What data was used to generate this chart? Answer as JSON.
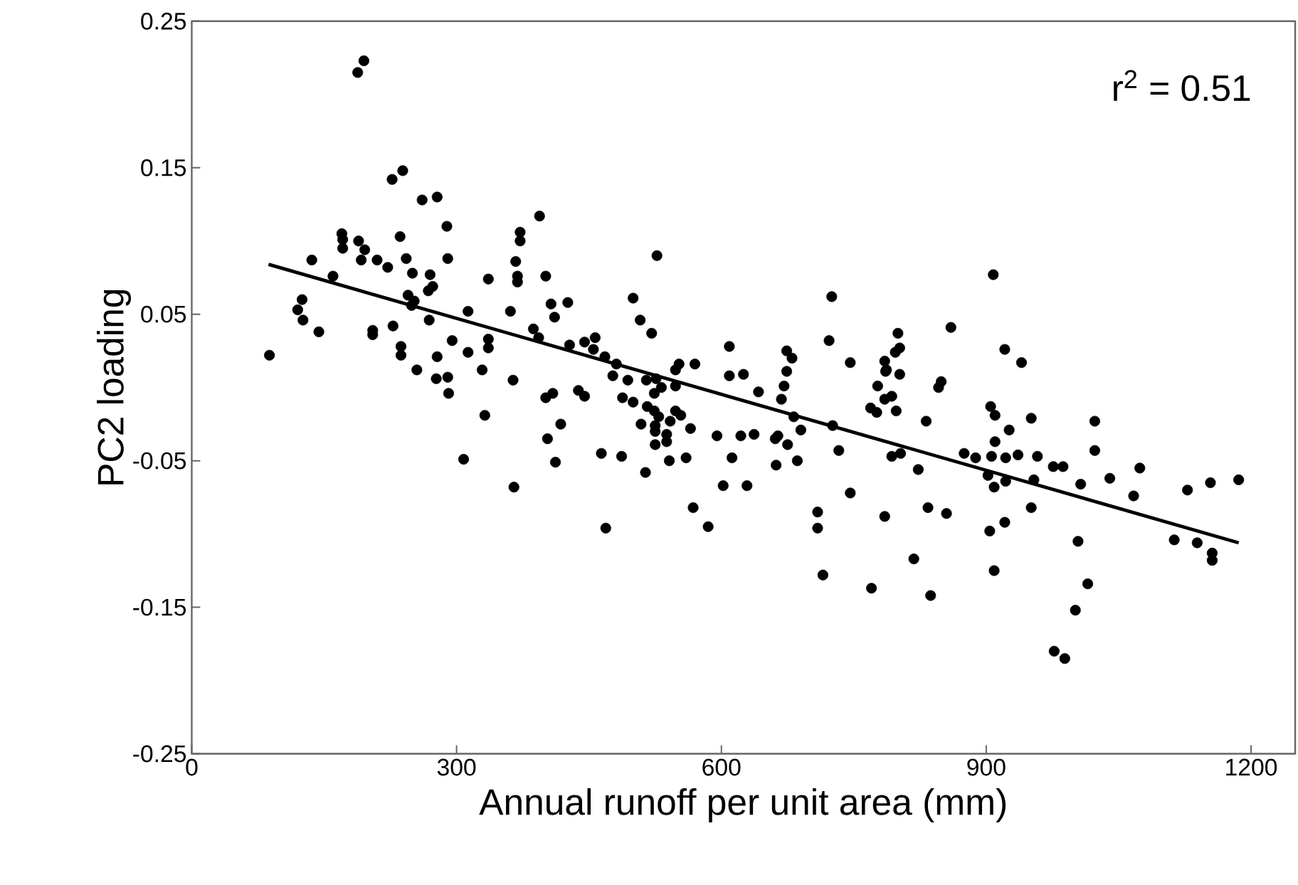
{
  "chart_data": {
    "type": "scatter",
    "xlabel": "Annual runoff per unit area (mm)",
    "ylabel": "PC2 loading",
    "annotations": [
      "r$^{2}$ = 0.51"
    ],
    "xlim": [
      0,
      1250
    ],
    "xticks": [
      0,
      300,
      600,
      900,
      1200
    ],
    "ylim": [
      -0.25,
      0.25
    ],
    "yticks": [
      -0.25,
      -0.15,
      -0.05,
      0.05,
      0.15,
      0.25
    ],
    "grid": false,
    "series": [
      {
        "color": "#000000",
        "marker": "circle",
        "x": [
          88,
          188,
          195,
          227,
          239,
          261,
          278,
          289,
          394,
          372,
          372,
          170,
          171,
          171,
          189,
          196,
          192,
          136,
          210,
          222,
          236,
          243,
          250,
          290,
          160,
          270,
          273,
          268,
          245,
          252,
          249,
          125,
          120,
          126,
          144,
          205,
          205,
          228,
          269,
          237,
          237,
          255,
          278,
          277,
          290,
          291,
          295,
          313,
          313,
          329,
          336,
          336,
          336,
          361,
          367,
          369,
          369,
          364,
          387,
          393,
          401,
          407,
          426,
          411,
          428,
          445,
          457,
          455,
          468,
          481,
          477,
          494,
          500,
          508,
          521,
          527,
          515,
          526,
          532,
          548,
          552,
          570,
          609,
          609,
          625,
          332,
          308,
          365,
          401,
          409,
          438,
          445,
          418,
          403,
          412,
          464,
          487,
          469,
          488,
          500,
          524,
          516,
          524,
          529,
          509,
          525,
          525,
          538,
          538,
          525,
          542,
          548,
          554,
          548,
          565,
          541,
          514,
          560,
          568,
          585,
          602,
          629,
          595,
          622,
          612,
          637,
          674,
          642,
          671,
          668,
          661,
          664,
          675,
          662,
          686,
          690,
          682,
          709,
          709,
          715,
          726,
          733,
          746,
          770,
          785,
          777,
          785,
          793,
          769,
          776,
          798,
          786,
          802,
          793,
          803,
          818,
          823,
          832,
          834,
          855,
          837,
          846,
          849,
          875,
          888,
          902,
          905,
          910,
          926,
          910,
          906,
          922,
          936,
          922,
          909,
          904,
          921,
          909,
          951,
          958,
          954,
          951,
          976,
          987,
          1007,
          1004,
          1015,
          1001,
          977,
          989,
          1023,
          1023,
          1040,
          1067,
          1074,
          1113,
          1128,
          1139,
          1154,
          1156,
          1156,
          1186,
          908,
          725,
          722,
          860,
          921,
          940,
          674,
          680,
          746,
          800,
          802,
          797,
          785,
          787
        ],
        "values": [
          0.022,
          0.215,
          0.223,
          0.142,
          0.148,
          0.128,
          0.13,
          0.11,
          0.117,
          0.106,
          0.1,
          0.105,
          0.101,
          0.095,
          0.1,
          0.094,
          0.087,
          0.087,
          0.087,
          0.082,
          0.103,
          0.088,
          0.078,
          0.088,
          0.076,
          0.077,
          0.069,
          0.066,
          0.063,
          0.059,
          0.056,
          0.06,
          0.053,
          0.046,
          0.038,
          0.039,
          0.036,
          0.042,
          0.046,
          0.028,
          0.022,
          0.012,
          0.021,
          0.006,
          0.007,
          -0.004,
          0.032,
          0.052,
          0.024,
          0.012,
          0.074,
          0.033,
          0.027,
          0.052,
          0.086,
          0.076,
          0.072,
          0.005,
          0.04,
          0.034,
          0.076,
          0.057,
          0.058,
          0.048,
          0.029,
          0.031,
          0.034,
          0.026,
          0.021,
          0.016,
          0.008,
          0.005,
          0.061,
          0.046,
          0.037,
          0.09,
          0.005,
          0.006,
          0.0,
          0.012,
          0.016,
          0.016,
          0.028,
          0.008,
          0.009,
          -0.019,
          -0.049,
          -0.068,
          -0.007,
          -0.004,
          -0.002,
          -0.006,
          -0.025,
          -0.035,
          -0.051,
          -0.045,
          -0.047,
          -0.096,
          -0.007,
          -0.01,
          -0.004,
          -0.013,
          -0.016,
          -0.02,
          -0.025,
          -0.026,
          -0.03,
          -0.032,
          -0.037,
          -0.039,
          -0.023,
          -0.016,
          -0.019,
          0.001,
          -0.028,
          -0.05,
          -0.058,
          -0.048,
          -0.082,
          -0.095,
          -0.067,
          -0.067,
          -0.033,
          -0.033,
          -0.048,
          -0.032,
          0.011,
          -0.003,
          0.001,
          -0.008,
          -0.035,
          -0.033,
          -0.039,
          -0.053,
          -0.05,
          -0.029,
          -0.02,
          -0.085,
          -0.096,
          -0.128,
          -0.026,
          -0.043,
          -0.072,
          -0.137,
          -0.088,
          0.001,
          -0.008,
          -0.006,
          -0.014,
          -0.017,
          -0.016,
          0.011,
          0.009,
          -0.047,
          -0.045,
          -0.117,
          -0.056,
          -0.023,
          -0.082,
          -0.086,
          -0.142,
          0.0,
          0.004,
          -0.045,
          -0.048,
          -0.06,
          -0.013,
          -0.019,
          -0.029,
          -0.037,
          -0.047,
          -0.048,
          -0.046,
          -0.064,
          -0.068,
          -0.098,
          -0.092,
          -0.125,
          -0.021,
          -0.047,
          -0.063,
          -0.082,
          -0.054,
          -0.054,
          -0.066,
          -0.105,
          -0.134,
          -0.152,
          -0.18,
          -0.185,
          -0.023,
          -0.043,
          -0.062,
          -0.074,
          -0.055,
          -0.104,
          -0.07,
          -0.106,
          -0.065,
          -0.113,
          -0.118,
          -0.063,
          0.077,
          0.062,
          0.032,
          0.041,
          0.026,
          0.017,
          0.025,
          0.02,
          0.017,
          0.037,
          0.027,
          0.024,
          0.018,
          0.012
        ]
      },
      {
        "type": "line",
        "color": "#000000",
        "marker": "none",
        "x": [
          87,
          1186
        ],
        "values": [
          0.084,
          -0.106
        ]
      }
    ]
  }
}
